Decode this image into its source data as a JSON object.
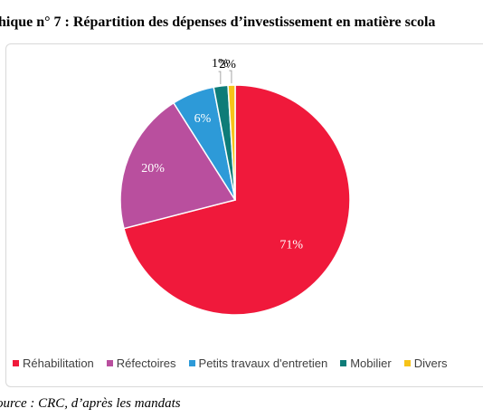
{
  "title": "ohique n° 7 :  Répartition des dépenses d’investissement en matière scola",
  "source": "ource : CRC, d’après les mandats",
  "chart_data": {
    "type": "pie",
    "title": "",
    "slices": [
      {
        "label": "Réhabilitation",
        "value": 71,
        "display": "71%",
        "color": "#f0193b"
      },
      {
        "label": "Réfectoires",
        "value": 20,
        "display": "20%",
        "color": "#b94f9e"
      },
      {
        "label": "Petits travaux d'entretien",
        "value": 6,
        "display": "6%",
        "color": "#2d9ad8"
      },
      {
        "label": "Mobilier",
        "value": 2,
        "display": "2%",
        "color": "#0e7c78"
      },
      {
        "label": "Divers",
        "value": 1,
        "display": "1%",
        "color": "#f6c319"
      }
    ],
    "legend_position": "bottom",
    "start_angle_deg": 0,
    "direction": "clockwise"
  }
}
